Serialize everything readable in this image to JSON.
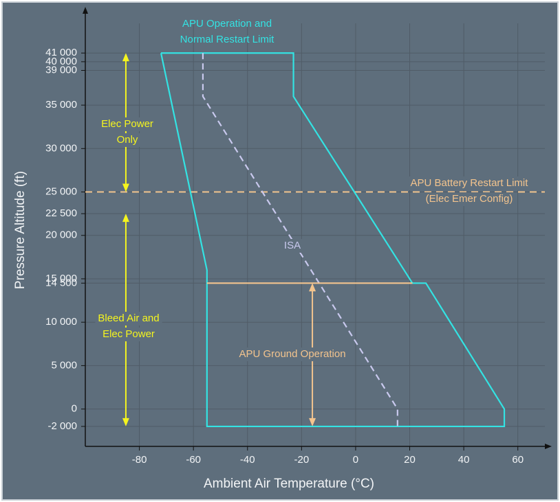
{
  "chart_data": {
    "type": "line",
    "x_label": "Ambient Air Temperature (°C)",
    "y_label": "Pressure Altitude (ft)",
    "xlim": [
      -100,
      70
    ],
    "ylim": [
      -4300,
      46000
    ],
    "xticks": [
      -80,
      -60,
      -40,
      -20,
      0,
      20,
      40,
      60
    ],
    "yticks": [
      {
        "value": -2000,
        "label": "-2 000"
      },
      0,
      {
        "value": 5000,
        "label": "5 000"
      },
      {
        "value": 10000,
        "label": "10 000"
      },
      {
        "value": 14500,
        "label": "14 500"
      },
      {
        "value": 15000,
        "label": "15 000"
      },
      {
        "value": 20000,
        "label": "20 000"
      },
      {
        "value": 22500,
        "label": "22 500"
      },
      {
        "value": 25000,
        "label": "25 000"
      },
      {
        "value": 30000,
        "label": "30 000"
      },
      {
        "value": 35000,
        "label": "35 000"
      },
      {
        "value": 39000,
        "label": "39 000"
      },
      {
        "value": 40000,
        "label": "40 000"
      },
      {
        "value": 41000,
        "label": "41 000"
      }
    ],
    "grid": true,
    "series": [
      {
        "color": "#33e3e3",
        "dash": false,
        "x": [
          -72,
          -23,
          -23,
          21,
          26,
          55,
          55,
          -55,
          -55,
          -72
        ],
        "values": [
          41000,
          41000,
          36000,
          14500,
          14500,
          0,
          -2000,
          -2000,
          16000,
          41000
        ]
      },
      {
        "color": "#c9c9ee",
        "dash": true,
        "x": [
          -56.5,
          -56.5,
          15.5,
          15.5
        ],
        "values": [
          41000,
          36000,
          0,
          -2000
        ]
      },
      {
        "color": "#f3c48e",
        "dash": false,
        "x": [
          -55,
          21
        ],
        "values": [
          14500,
          14500
        ]
      }
    ],
    "reference_lines": [
      {
        "value": 25000,
        "color": "#f3c48e",
        "dash": true
      }
    ],
    "arrows": [
      {
        "x": -85,
        "values": [
          41000,
          25000
        ],
        "color": "#f5f51e"
      },
      {
        "x": -85,
        "values": [
          22500,
          -2000
        ],
        "color": "#f5f51e"
      },
      {
        "x": -16,
        "values": [
          14500,
          -2000
        ],
        "color": "#f3c48e"
      }
    ],
    "annotations": [
      {
        "lines": [
          "APU Operation and",
          "Normal Restart Limit"
        ],
        "color": "#33e3e3"
      },
      {
        "lines": [
          "APU Battery Restart Limit",
          "(Elec Emer Config)"
        ],
        "color": "#f3c48e"
      },
      {
        "lines": [
          "ISA"
        ],
        "color": "#c9c9ee"
      },
      {
        "lines": [
          "APU Ground Operation"
        ],
        "color": "#f3c48e"
      },
      {
        "lines": [
          "Elec Power",
          "Only"
        ],
        "color": "#f5f51e"
      },
      {
        "lines": [
          "Bleed Air and",
          "Elec Power"
        ],
        "color": "#f5f51e"
      }
    ]
  }
}
